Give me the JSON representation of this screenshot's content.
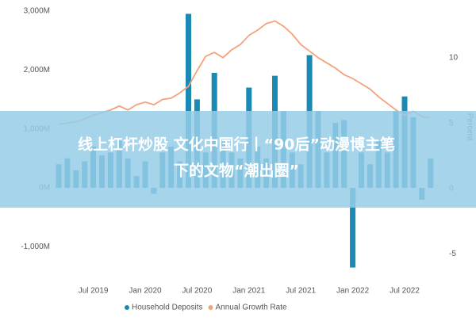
{
  "chart_data": {
    "type": "bar_line",
    "categories": [
      null,
      null,
      null,
      null,
      "Jul 2019",
      null,
      null,
      null,
      null,
      null,
      "Jan 2020",
      null,
      null,
      null,
      null,
      null,
      "Jul 2020",
      null,
      null,
      null,
      null,
      null,
      "Jan 2021",
      null,
      null,
      null,
      null,
      null,
      "Jul 2021",
      null,
      null,
      null,
      null,
      null,
      "Jan 2022",
      null,
      null,
      null,
      null,
      null,
      "Jul 2022",
      null,
      null,
      null
    ],
    "series": [
      {
        "name": "Household Deposits",
        "type": "bar",
        "color": "#1a8ab4",
        "values": [
          400,
          500,
          300,
          450,
          700,
          550,
          600,
          800,
          500,
          200,
          450,
          -100,
          600,
          700,
          450,
          2950,
          1500,
          600,
          1950,
          800,
          600,
          500,
          1700,
          700,
          500,
          1900,
          1300,
          600,
          400,
          2250,
          1300,
          600,
          1100,
          1150,
          -1350,
          600,
          400,
          800,
          600,
          1300,
          1550,
          1200,
          -200,
          500
        ]
      },
      {
        "name": "Annual Growth Rate",
        "type": "line",
        "axis": "y2",
        "color": "#f4a27a",
        "values": [
          4.9,
          5.0,
          5.1,
          5.3,
          5.6,
          5.8,
          6.0,
          6.3,
          6.0,
          6.4,
          6.6,
          6.4,
          6.8,
          6.9,
          7.3,
          7.8,
          9.0,
          10.1,
          10.4,
          10.0,
          10.6,
          11.0,
          11.7,
          12.1,
          12.6,
          12.8,
          12.4,
          11.8,
          11.0,
          10.5,
          10.0,
          9.6,
          9.2,
          8.7,
          8.4,
          8.0,
          7.6,
          7.0,
          6.5,
          6.0,
          5.6,
          5.9,
          5.5,
          5.4
        ]
      }
    ],
    "ylim": [
      -1450,
      3050
    ],
    "yticks": [
      {
        "value": -1000,
        "label": "-1,000M"
      },
      {
        "value": 0,
        "label": "0M"
      },
      {
        "value": 1000,
        "label": "1,000M"
      },
      {
        "value": 2000,
        "label": "2,000M"
      },
      {
        "value": 3000,
        "label": "3,000M"
      }
    ],
    "y2lim": [
      -6.5,
      13.8
    ],
    "y2ticks": [
      -5,
      0,
      5,
      10
    ],
    "y2label": "Percent"
  },
  "banner": {
    "lines": [
      "线上杠杆炒股 文化中国行丨“90后”动漫博主笔",
      "下的文物“潮出圈”"
    ]
  }
}
